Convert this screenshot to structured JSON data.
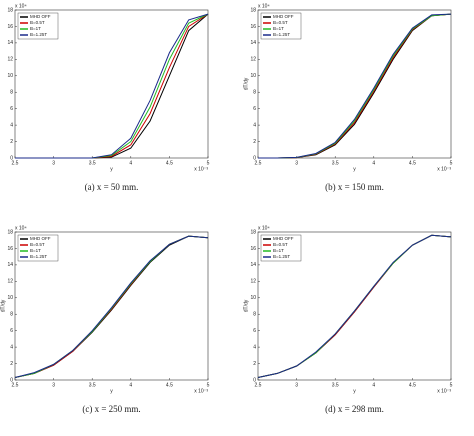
{
  "chart_data": [
    {
      "type": "line",
      "caption": "(a) x = 50 mm.",
      "x_label": "y",
      "x_exponent": "x 10⁻³",
      "y_exponent": "x 10⁴",
      "legend": "upper left",
      "x": [
        2.5,
        2.75,
        3,
        3.25,
        3.5,
        3.75,
        4,
        4.25,
        4.5,
        4.75,
        5
      ],
      "xlim": [
        2.5,
        5
      ],
      "ylim": [
        0,
        18
      ],
      "xticks": [
        2.5,
        3,
        3.5,
        4,
        4.5,
        5
      ],
      "yticks": [
        0,
        2,
        4,
        6,
        8,
        10,
        12,
        14,
        16,
        18
      ],
      "series": [
        {
          "name": "MHD OFF",
          "color": "#000000",
          "values": [
            0,
            0,
            0,
            0,
            0,
            0.1,
            1.2,
            4.5,
            10,
            15.5,
            17.5
          ]
        },
        {
          "name": "B=0.5T",
          "color": "#cc0000",
          "values": [
            0,
            0,
            0,
            0,
            0,
            0.2,
            1.6,
            5.4,
            11,
            16,
            17.5
          ]
        },
        {
          "name": "B=1T",
          "color": "#22bb22",
          "values": [
            0,
            0,
            0,
            0,
            0,
            0.3,
            2,
            6.2,
            12,
            16.4,
            17.5
          ]
        },
        {
          "name": "B=1.25T",
          "color": "#1a2a8a",
          "values": [
            0,
            0,
            0,
            0,
            0,
            0.4,
            2.4,
            7,
            12.8,
            16.8,
            17.5
          ]
        }
      ]
    },
    {
      "type": "line",
      "caption": "(b) x = 150 mm.",
      "x_label": "y",
      "y_label": "dT/dy",
      "x_exponent": "x 10⁻³",
      "y_exponent": "x 10⁴",
      "legend": "upper left",
      "x": [
        2.5,
        2.75,
        3,
        3.25,
        3.5,
        3.75,
        4,
        4.25,
        4.5,
        4.75,
        5
      ],
      "xlim": [
        2.5,
        5
      ],
      "ylim": [
        0,
        18
      ],
      "xticks": [
        2.5,
        3,
        3.5,
        4,
        4.5,
        5
      ],
      "yticks": [
        0,
        2,
        4,
        6,
        8,
        10,
        12,
        14,
        16,
        18
      ],
      "series": [
        {
          "name": "MHD OFF",
          "color": "#000000",
          "values": [
            0,
            0,
            0.05,
            0.4,
            1.6,
            4.1,
            7.9,
            12,
            15.5,
            17.3,
            17.5
          ]
        },
        {
          "name": "B=0.5T",
          "color": "#cc0000",
          "values": [
            0,
            0,
            0.05,
            0.45,
            1.7,
            4.3,
            8.1,
            12.2,
            15.6,
            17.3,
            17.5
          ]
        },
        {
          "name": "B=1T",
          "color": "#22bb22",
          "values": [
            0,
            0,
            0.06,
            0.5,
            1.8,
            4.5,
            8.3,
            12.4,
            15.7,
            17.3,
            17.5
          ]
        },
        {
          "name": "B=1.25T",
          "color": "#1a2a8a",
          "values": [
            0,
            0,
            0.07,
            0.55,
            1.9,
            4.7,
            8.5,
            12.6,
            15.8,
            17.4,
            17.5
          ]
        }
      ]
    },
    {
      "type": "line",
      "caption": "(c) x = 250 mm.",
      "x_label": "y",
      "y_label": "dT/dy",
      "x_exponent": "x 10⁻³",
      "y_exponent": "x 10⁴",
      "legend": "upper left",
      "x": [
        2.5,
        2.75,
        3,
        3.25,
        3.5,
        3.75,
        4,
        4.25,
        4.5,
        4.75,
        5
      ],
      "xlim": [
        2.5,
        5
      ],
      "ylim": [
        0,
        18
      ],
      "xticks": [
        2.5,
        3,
        3.5,
        4,
        4.5,
        5
      ],
      "yticks": [
        0,
        2,
        4,
        6,
        8,
        10,
        12,
        14,
        16,
        18
      ],
      "series": [
        {
          "name": "MHD OFF",
          "color": "#000000",
          "values": [
            0.3,
            0.8,
            1.8,
            3.5,
            5.8,
            8.5,
            11.5,
            14.3,
            16.4,
            17.5,
            17.3
          ]
        },
        {
          "name": "B=0.5T",
          "color": "#cc0000",
          "values": [
            0.3,
            0.8,
            1.8,
            3.5,
            5.9,
            8.6,
            11.6,
            14.4,
            16.5,
            17.5,
            17.3
          ]
        },
        {
          "name": "B=1T",
          "color": "#22bb22",
          "values": [
            0.3,
            0.8,
            1.9,
            3.6,
            5.9,
            8.7,
            11.7,
            14.4,
            16.5,
            17.5,
            17.3
          ]
        },
        {
          "name": "B=1.25T",
          "color": "#1a2a8a",
          "values": [
            0.3,
            0.9,
            1.9,
            3.6,
            6,
            8.8,
            11.8,
            14.5,
            16.5,
            17.5,
            17.3
          ]
        }
      ]
    },
    {
      "type": "line",
      "caption": "(d) x = 298 mm.",
      "x_label": "y",
      "y_label": "dT/dy",
      "x_exponent": "x 10⁻³",
      "y_exponent": "x 10⁴",
      "legend": "upper left",
      "x": [
        2.5,
        2.75,
        3,
        3.25,
        3.5,
        3.75,
        4,
        4.25,
        4.5,
        4.75,
        5
      ],
      "xlim": [
        2.5,
        5
      ],
      "ylim": [
        0,
        18
      ],
      "xticks": [
        2.5,
        3,
        3.5,
        4,
        4.5,
        5
      ],
      "yticks": [
        0,
        2,
        4,
        6,
        8,
        10,
        12,
        14,
        16,
        18
      ],
      "series": [
        {
          "name": "MHD OFF",
          "color": "#000000",
          "values": [
            0.3,
            0.8,
            1.7,
            3.3,
            5.5,
            8.3,
            11.3,
            14.2,
            16.4,
            17.6,
            17.4
          ]
        },
        {
          "name": "B=0.5T",
          "color": "#cc0000",
          "values": [
            0.3,
            0.8,
            1.7,
            3.3,
            5.5,
            8.3,
            11.3,
            14.2,
            16.4,
            17.6,
            17.4
          ]
        },
        {
          "name": "B=1T",
          "color": "#22bb22",
          "values": [
            0.3,
            0.8,
            1.7,
            3.3,
            5.6,
            8.4,
            11.4,
            14.2,
            16.4,
            17.6,
            17.4
          ]
        },
        {
          "name": "B=1.25T",
          "color": "#1a2a8a",
          "values": [
            0.3,
            0.8,
            1.7,
            3.4,
            5.6,
            8.4,
            11.4,
            14.3,
            16.4,
            17.6,
            17.4
          ]
        }
      ]
    }
  ]
}
